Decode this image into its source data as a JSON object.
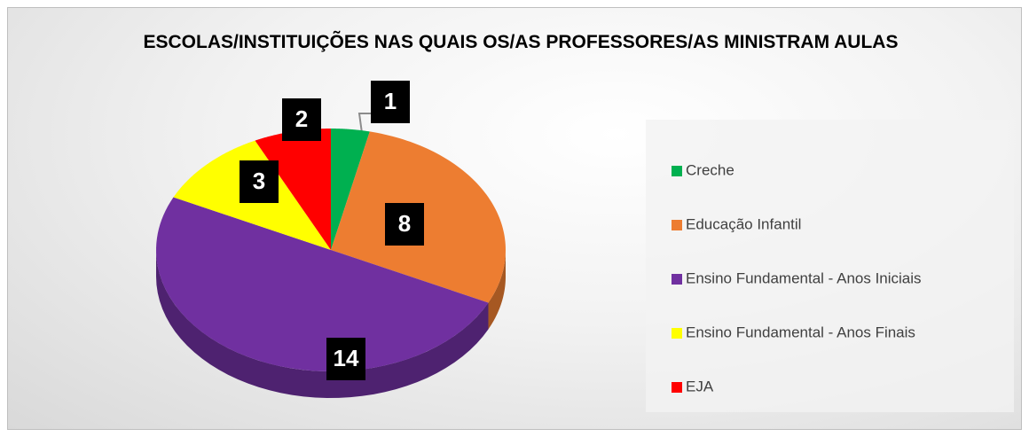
{
  "chart_data": {
    "type": "pie",
    "title": "ESCOLAS/INSTITUIÇÕES NAS QUAIS OS/AS PROFESSORES/AS MINISTRAM AULAS",
    "categories": [
      "Creche",
      "Educação Infantil",
      "Ensino Fundamental - Anos Iniciais",
      "Ensino Fundamental - Anos Finais",
      "EJA"
    ],
    "values": [
      1,
      8,
      14,
      3,
      2
    ],
    "colors": [
      "#00b050",
      "#ed7d31",
      "#7030a0",
      "#ffff00",
      "#ff0000"
    ],
    "legend": "right"
  }
}
